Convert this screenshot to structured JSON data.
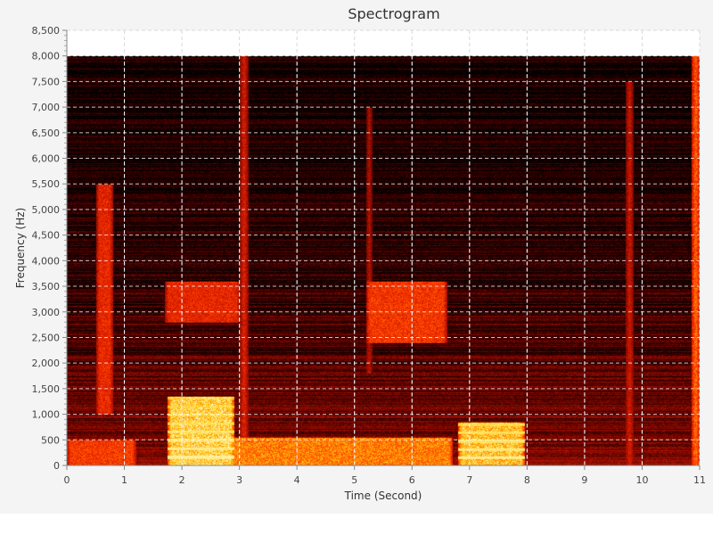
{
  "chart_data": {
    "type": "heatmap",
    "title": "Spectrogram",
    "xlabel": "Time (Second)",
    "ylabel": "Frequency (Hz)",
    "xlim": [
      0,
      11
    ],
    "ylim": [
      0,
      8500
    ],
    "x_ticks": [
      0,
      1,
      2,
      3,
      4,
      5,
      6,
      7,
      8,
      9,
      10,
      11
    ],
    "y_ticks": [
      0,
      500,
      1000,
      1500,
      2000,
      2500,
      3000,
      3500,
      4000,
      4500,
      5000,
      5500,
      6000,
      6500,
      7000,
      7500,
      8000,
      8500
    ],
    "x_tick_labels": [
      "0",
      "1",
      "2",
      "3",
      "4",
      "5",
      "6",
      "7",
      "8",
      "9",
      "10",
      "11"
    ],
    "y_tick_labels": [
      "0",
      "500",
      "1,000",
      "1,500",
      "2,000",
      "2,500",
      "3,000",
      "3,500",
      "4,000",
      "4,500",
      "5,000",
      "5,500",
      "6,000",
      "6,500",
      "7,000",
      "7,500",
      "8,000",
      "8,500"
    ],
    "data_extent": {
      "time": [
        0,
        11
      ],
      "frequency": [
        0,
        8000
      ]
    },
    "grid": true,
    "colormap": [
      "#000000",
      "#3a0000",
      "#8a0a00",
      "#d21a00",
      "#ff3c00",
      "#ff8c00",
      "#ffd21e",
      "#fff5b4"
    ],
    "bright_regions": [
      {
        "t": [
          1.75,
          2.9
        ],
        "f": [
          0,
          1350
        ],
        "level": 0.95
      },
      {
        "t": [
          6.8,
          7.95
        ],
        "f": [
          0,
          850
        ],
        "level": 0.9
      },
      {
        "t": [
          2.8,
          6.7
        ],
        "f": [
          0,
          550
        ],
        "level": 0.75
      },
      {
        "t": [
          0,
          1.2
        ],
        "f": [
          0,
          500
        ],
        "level": 0.6
      },
      {
        "t": [
          5.2,
          6.6
        ],
        "f": [
          2400,
          3600
        ],
        "level": 0.6
      },
      {
        "t": [
          1.7,
          3.0
        ],
        "f": [
          2800,
          3600
        ],
        "level": 0.55
      },
      {
        "t": [
          0.5,
          0.8
        ],
        "f": [
          1000,
          5500
        ],
        "level": 0.55
      },
      {
        "t": [
          10.85,
          11.0
        ],
        "f": [
          0,
          8000
        ],
        "level": 0.7
      },
      {
        "t": [
          9.7,
          9.85
        ],
        "f": [
          0,
          7500
        ],
        "level": 0.45
      },
      {
        "t": [
          3.0,
          3.15
        ],
        "f": [
          0,
          8000
        ],
        "level": 0.5
      },
      {
        "t": [
          5.2,
          5.3
        ],
        "f": [
          1800,
          7000
        ],
        "level": 0.45
      }
    ],
    "harmonic_bands": [
      {
        "t": [
          1.75,
          2.9
        ],
        "f0": 165,
        "count": 8
      },
      {
        "t": [
          6.8,
          7.95
        ],
        "f0": 160,
        "count": 5
      }
    ]
  }
}
